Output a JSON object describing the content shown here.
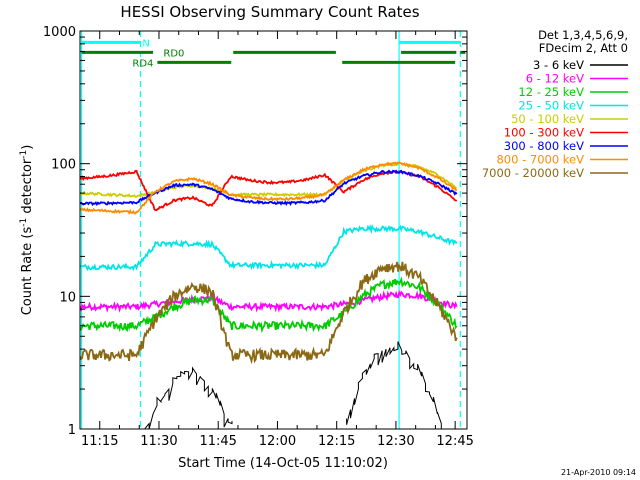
{
  "chart_data": {
    "type": "line",
    "title": "HESSI Observing Summary Count Rates",
    "xlabel": "Start Time (14-Oct-05 11:10:02)",
    "ylabel_main": "Count Rate (s",
    "ylabel_sup1": "-1",
    "ylabel_mid": " detector",
    "ylabel_sup2": "-1",
    "ylabel_end": ")",
    "x_unit": "minutes after 11:00 UT",
    "xlim": [
      70,
      168
    ],
    "ylim": [
      1,
      1000
    ],
    "yscale": "log",
    "x_ticks": [
      {
        "value": 75,
        "label": "11:15"
      },
      {
        "value": 90,
        "label": "11:30"
      },
      {
        "value": 105,
        "label": "11:45"
      },
      {
        "value": 120,
        "label": "12:00"
      },
      {
        "value": 135,
        "label": "12:15"
      },
      {
        "value": 150,
        "label": "12:30"
      },
      {
        "value": 165,
        "label": "12:45"
      }
    ],
    "y_ticks": [
      {
        "value": 1,
        "label": "1"
      },
      {
        "value": 10,
        "label": "10"
      },
      {
        "value": 100,
        "label": "100"
      },
      {
        "value": 1000,
        "label": "1000"
      }
    ],
    "legend_header": [
      "Det 1,3,4,5,6,9,",
      "FDecim 2, Att 0"
    ],
    "legend_position": "right",
    "series": [
      {
        "name": "3 - 6 keV",
        "color": "#000000",
        "line_color": "#000000",
        "x": [
          86.5,
          87.5,
          88.5,
          89.5,
          90.5,
          91.5,
          92.5,
          93.5,
          94.5,
          95.5,
          96.5,
          97.5,
          98.5,
          99.5,
          100.5,
          101.5,
          102.5,
          103.5,
          104.5,
          105.5,
          106.5,
          107.5,
          108.5,
          137.5,
          138.5,
          139.5,
          140.5,
          141.5,
          142.5,
          143.5,
          144.5,
          145.5,
          146.5,
          147.5,
          148.5,
          149.5,
          150.5,
          151.5,
          152.5,
          153.5,
          154.5,
          155.5,
          156.5,
          157.5,
          158.5,
          159.5,
          160.5,
          161.5
        ],
        "y": [
          1.0,
          1.1,
          1.3,
          1.5,
          1.6,
          1.8,
          2.0,
          2.2,
          2.4,
          2.5,
          2.6,
          2.7,
          2.7,
          2.6,
          2.5,
          2.3,
          2.1,
          1.9,
          1.7,
          1.5,
          1.3,
          1.2,
          1.1,
          1.2,
          1.4,
          1.7,
          2.0,
          2.4,
          2.8,
          3.1,
          3.4,
          3.7,
          3.9,
          4.0,
          4.1,
          4.1,
          4.0,
          3.9,
          3.7,
          3.4,
          3.1,
          2.8,
          2.5,
          2.2,
          1.9,
          1.6,
          1.3,
          1.1
        ]
      },
      {
        "name": "6 - 12 keV",
        "color": "#ff00ff",
        "line_color": "#ff00ff",
        "x": [
          70.0,
          74.8,
          79.5,
          84.3,
          89.1,
          93.9,
          98.6,
          103.4,
          108.2,
          112.9,
          117.7,
          122.5,
          127.3,
          132.0,
          136.8,
          141.6,
          146.4,
          151.1,
          155.9,
          160.7,
          165.4
        ],
        "y": [
          8.35,
          8.35,
          8.35,
          8.35,
          8.73,
          9.14,
          9.48,
          9.74,
          8.35,
          8.35,
          8.35,
          8.35,
          8.35,
          8.35,
          8.73,
          9.29,
          9.94,
          10.38,
          10.1,
          9.14,
          8.35
        ]
      },
      {
        "name": "12 - 25 keV",
        "color": "#00ff00",
        "line_color": "#00cc00",
        "x": [
          70.0,
          74.8,
          79.5,
          84.3,
          89.1,
          93.9,
          98.6,
          103.4,
          108.2,
          112.9,
          117.7,
          122.5,
          127.3,
          132.0,
          136.8,
          141.6,
          146.4,
          151.1,
          155.9,
          160.7,
          165.4
        ],
        "y": [
          5.99,
          5.99,
          5.99,
          5.99,
          6.98,
          8.41,
          9.38,
          9.43,
          5.99,
          5.99,
          5.99,
          5.99,
          5.99,
          5.99,
          7.48,
          10.02,
          12.25,
          13.08,
          11.71,
          8.84,
          5.99
        ]
      },
      {
        "name": "25 - 50 keV",
        "color": "#00ffff",
        "line_color": "#00e5e5",
        "x": [
          70.0,
          74.8,
          79.5,
          84.3,
          89.1,
          93.9,
          98.6,
          103.4,
          108.2,
          112.9,
          117.7,
          122.5,
          127.3,
          132.0,
          136.8,
          141.6,
          146.4,
          151.1,
          155.9,
          160.7,
          165.4
        ],
        "y": [
          16.67,
          16.67,
          16.67,
          16.67,
          24.65,
          25.01,
          25.0,
          24.64,
          17.14,
          17.14,
          17.14,
          17.14,
          17.14,
          17.14,
          30.74,
          32.43,
          32.42,
          32.41,
          30.72,
          27.64,
          25.01
        ]
      },
      {
        "name": "50 - 100 keV",
        "color": "#ffff00",
        "line_color": "#cccc00",
        "x": [
          70.0,
          74.8,
          79.5,
          84.3,
          89.1,
          93.9,
          98.6,
          103.4,
          108.2,
          112.9,
          117.7,
          122.5,
          127.3,
          132.0,
          136.8,
          141.6,
          146.4,
          151.1,
          155.9,
          160.7,
          165.4
        ],
        "y": [
          60.0,
          59.1,
          58.0,
          57.0,
          60.7,
          66.3,
          68.6,
          65.3,
          58.5,
          58.5,
          58.5,
          58.5,
          58.5,
          58.5,
          74.7,
          87.3,
          96.9,
          99.9,
          94.7,
          82.4,
          65.4
        ]
      },
      {
        "name": "100 - 300 keV",
        "color": "#ff0000",
        "line_color": "#ff0000",
        "x": [
          70.0,
          74.8,
          79.5,
          84.3,
          89.1,
          93.9,
          98.6,
          103.4,
          108.2,
          112.9,
          117.7,
          122.5,
          127.3,
          132.0,
          136.8,
          141.6,
          146.4,
          151.1,
          155.9,
          160.7,
          165.4
        ],
        "y": [
          77.5,
          79.5,
          82.7,
          87.4,
          44.5,
          53.1,
          55.4,
          47.8,
          80.3,
          75.0,
          72.2,
          72.4,
          75.7,
          82.4,
          61.2,
          75.2,
          84.7,
          86.5,
          80.1,
          66.6,
          52.3
        ]
      },
      {
        "name": "300 - 800 keV",
        "color": "#0000ff",
        "line_color": "#0000ff",
        "x": [
          70.0,
          74.8,
          79.5,
          84.3,
          89.1,
          93.9,
          98.6,
          103.4,
          108.2,
          112.9,
          117.7,
          122.5,
          127.3,
          132.0,
          136.8,
          141.6,
          146.4,
          151.1,
          155.9,
          160.7,
          165.4
        ],
        "y": [
          50.0,
          50.2,
          50.6,
          51.1,
          60.5,
          68.7,
          69.7,
          64.3,
          54.4,
          51.9,
          50.7,
          50.4,
          51.0,
          52.8,
          70.8,
          80.7,
          86.7,
          87.1,
          80.8,
          70.6,
          59.0
        ]
      },
      {
        "name": "800 - 7000 keV",
        "color": "#ff8c00",
        "line_color": "#ff8c00",
        "x": [
          70.0,
          74.8,
          79.5,
          84.3,
          89.1,
          93.9,
          98.6,
          103.4,
          108.2,
          112.9,
          117.7,
          122.5,
          127.3,
          132.0,
          136.8,
          141.6,
          146.4,
          151.1,
          155.9,
          160.7,
          165.4
        ],
        "y": [
          45.0,
          44.3,
          43.7,
          43.0,
          61.6,
          73.6,
          77.1,
          70.3,
          58.0,
          55.5,
          54.1,
          54.0,
          55.5,
          58.4,
          75.2,
          89.6,
          99.0,
          100.6,
          92.6,
          78.0,
          62.7
        ]
      },
      {
        "name": "7000 - 20000 keV",
        "color": "#8b6914",
        "line_color": "#8b6914",
        "x": [
          70.0,
          74.8,
          79.5,
          84.3,
          89.1,
          93.9,
          98.6,
          103.4,
          108.2,
          112.9,
          117.7,
          122.5,
          127.3,
          132.0,
          136.8,
          141.6,
          146.4,
          151.1,
          155.9,
          160.7,
          165.4
        ],
        "y": [
          3.61,
          3.61,
          3.61,
          3.61,
          6.76,
          10.12,
          12.0,
          10.91,
          3.61,
          3.61,
          3.61,
          3.61,
          3.61,
          3.61,
          7.56,
          12.82,
          16.54,
          16.98,
          13.82,
          8.59,
          4.89
        ]
      }
    ],
    "vertical_lines": [
      {
        "x": 70.4,
        "style": "solid",
        "color": "#00ffff"
      },
      {
        "x": 85.3,
        "style": "dashed",
        "color": "#00ffff"
      },
      {
        "x": 150.8,
        "style": "solid",
        "color": "#00ffff"
      },
      {
        "x": 166.3,
        "style": "dashed",
        "color": "#00ffff"
      }
    ],
    "flags": [
      {
        "label": "N",
        "color": "#00ffff",
        "y": 820,
        "segments": [
          [
            70.4,
            85.3
          ],
          [
            150.8,
            166.3
          ]
        ]
      },
      {
        "label": "RD0",
        "color": "#008000",
        "y": 690,
        "segments": [
          [
            70.4,
            88.5
          ],
          [
            108.8,
            134.8
          ],
          [
            151.3,
            165.3
          ],
          [
            166.3,
            167.6
          ]
        ]
      },
      {
        "label": "RD4",
        "color": "#008000",
        "y": 580,
        "segments": [
          [
            89.6,
            108.3
          ],
          [
            136.4,
            165.0
          ]
        ]
      }
    ],
    "footer_date": "21-Apr-2010 09:14"
  }
}
